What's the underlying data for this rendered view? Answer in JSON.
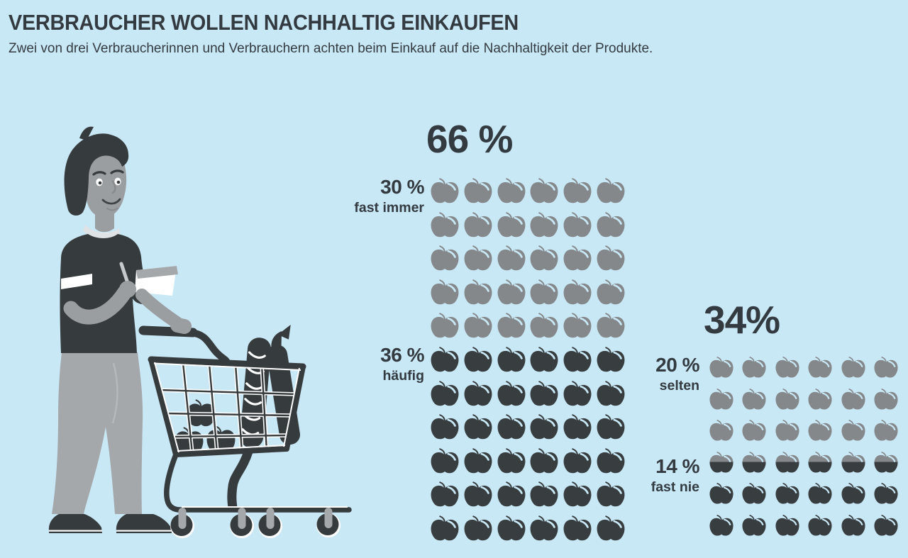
{
  "header": {
    "title": "VERBRAUCHER WOLLEN NACHHALTIG EINKAUFEN",
    "subtitle": "Zwei von drei Verbraucherinnen und Verbrauchern achten beim Einkauf auf die Nachhaltigkeit der Produkte."
  },
  "colors": {
    "background": "#c9e8f6",
    "text_dark": "#333a40",
    "apple_gray": "#85888b",
    "apple_dark": "#383d40",
    "illustration_ink": "#363b3e",
    "skin_gray": "#9b9ea1",
    "pants_gray": "#a5a8ab",
    "highlight_white": "#ffffff"
  },
  "chart_data": {
    "type": "pictograph",
    "icon": "apple",
    "icon_unit": "1 apple = 1 percent",
    "columns_per_group": 6,
    "groups": [
      {
        "id": "achten-auf-nachhaltigkeit",
        "total_label": "66 %",
        "total_value": 66,
        "segments": [
          {
            "value": 30,
            "pct_label": "30 %",
            "name": "fast immer",
            "color": "gray"
          },
          {
            "value": 36,
            "pct_label": "36 %",
            "name": "häufig",
            "color": "dark"
          }
        ],
        "rows": [
          "gray",
          "gray",
          "gray",
          "gray",
          "gray",
          "dark",
          "dark",
          "dark",
          "dark",
          "dark",
          "dark"
        ]
      },
      {
        "id": "achten-nicht-auf-nachhaltigkeit",
        "total_label": "34%",
        "total_value": 34,
        "segments": [
          {
            "value": 20,
            "pct_label": "20 %",
            "name": "selten",
            "color": "gray"
          },
          {
            "value": 14,
            "pct_label": "14 %",
            "name": "fast nie",
            "color": "dark"
          }
        ],
        "rows": [
          "gray",
          "gray",
          "gray",
          "split",
          "dark",
          "dark"
        ]
      }
    ]
  }
}
